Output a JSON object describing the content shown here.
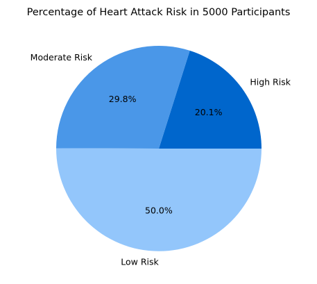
{
  "chart_data": {
    "type": "pie",
    "title": "Percentage of Heart Attack Risk in 5000 Participants",
    "categories": [
      "High Risk",
      "Moderate Risk",
      "Low Risk"
    ],
    "values": [
      20.1,
      29.8,
      50.0
    ],
    "value_labels": [
      "20.1%",
      "29.8%",
      "50.0%"
    ],
    "colors": [
      "#0066cc",
      "#4a97e8",
      "#93c6fb"
    ],
    "start_angle_deg": 0,
    "direction": "counterclockwise",
    "legend": "none"
  }
}
